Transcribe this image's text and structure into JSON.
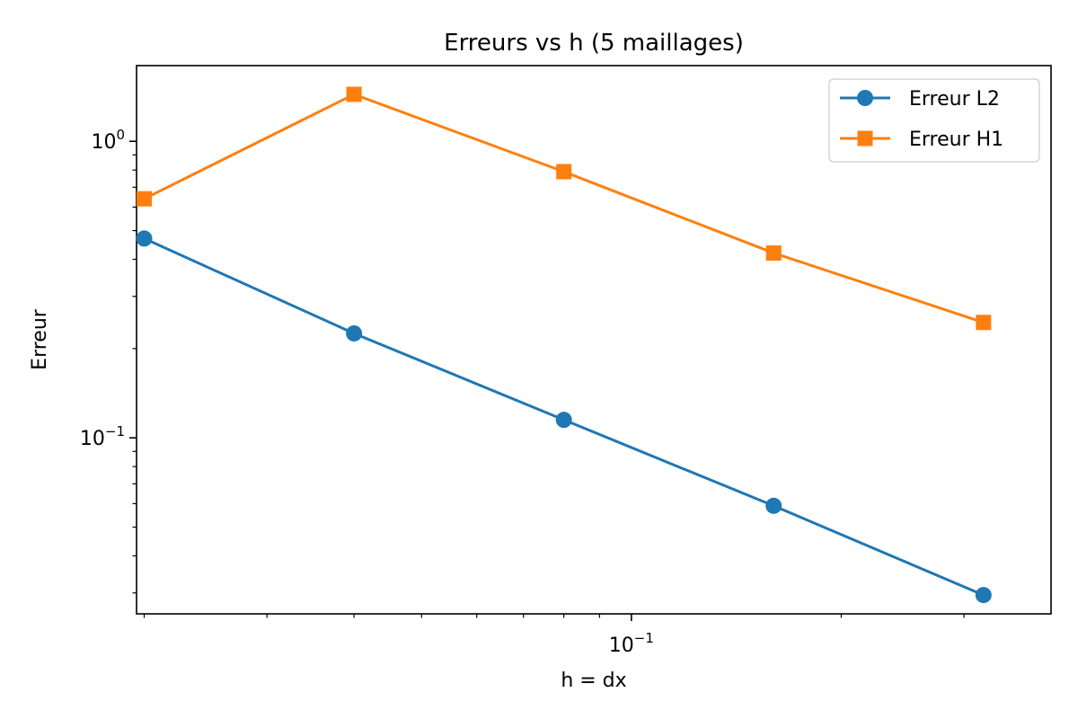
{
  "chart_data": {
    "type": "line",
    "title": "Erreurs vs h (5 maillages)",
    "xlabel": "h = dx",
    "ylabel": "Erreur",
    "xscale": "log",
    "yscale": "log",
    "xlim": [
      0.0195,
      0.4
    ],
    "ylim": [
      0.0255,
      1.8
    ],
    "x": [
      0.02,
      0.04,
      0.08,
      0.16,
      0.32
    ],
    "series": [
      {
        "name": "Erreur L2",
        "marker": "circle",
        "color": "#1f77b4",
        "values": [
          0.47,
          0.225,
          0.115,
          0.059,
          0.0295
        ]
      },
      {
        "name": "Erreur H1",
        "marker": "square",
        "color": "#ff7f0e",
        "values": [
          0.64,
          1.44,
          0.79,
          0.42,
          0.245
        ]
      }
    ],
    "x_major_ticks": [
      {
        "value": 0.1,
        "base": "10",
        "exp": "−1"
      }
    ],
    "y_major_ticks": [
      {
        "value": 1,
        "base": "10",
        "exp": "0"
      },
      {
        "value": 0.1,
        "base": "10",
        "exp": "−1"
      }
    ],
    "legend_position": "top-right",
    "grid": false
  }
}
